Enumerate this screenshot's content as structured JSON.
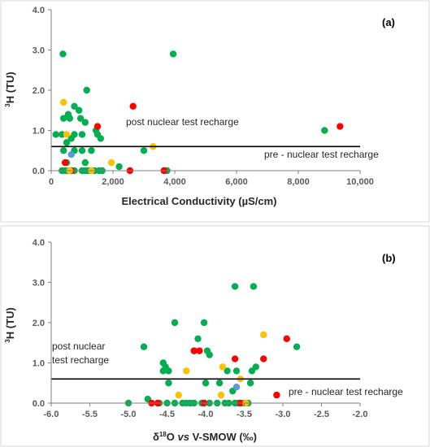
{
  "colors": {
    "green": "#00b050",
    "red": "#ff0000",
    "yellow": "#ffc000",
    "blue": "#5b9bd5",
    "axis": "#7f7f7f",
    "threshold": "#000000"
  },
  "chart_data": [
    {
      "type": "scatter",
      "panel_label": "(a)",
      "ylabel_sup": "3",
      "ylabel": "H (TU)",
      "xlabel": "Electrical Conductivity (µS/cm)",
      "xlim": [
        0,
        10000
      ],
      "ylim": [
        0,
        4
      ],
      "x_ticks": [
        "0",
        "2,000",
        "4,000",
        "6,000",
        "8,000",
        "10,000"
      ],
      "y_ticks": [
        "0.0",
        "1.0",
        "2.0",
        "3.0",
        "4.0"
      ],
      "threshold": 0.6,
      "annotations": [
        {
          "text": "post nuclear test recharge",
          "x": 3000,
          "y": 1.25
        },
        {
          "text": "pre - nuclear test recharge",
          "x": 6600,
          "y": 0.45
        }
      ],
      "series": [
        {
          "color": "green",
          "points": [
            [
              380,
              2.9
            ],
            [
              3950,
              2.9
            ],
            [
              1150,
              2.0
            ],
            [
              750,
              1.6
            ],
            [
              900,
              1.5
            ],
            [
              550,
              1.4
            ],
            [
              950,
              1.3
            ],
            [
              400,
              1.3
            ],
            [
              600,
              1.3
            ],
            [
              1100,
              1.2
            ],
            [
              150,
              0.9
            ],
            [
              1450,
              1.0
            ],
            [
              1500,
              0.9
            ],
            [
              350,
              0.9
            ],
            [
              750,
              0.9
            ],
            [
              1000,
              0.9
            ],
            [
              1600,
              0.8
            ],
            [
              650,
              0.8
            ],
            [
              500,
              0.7
            ],
            [
              3000,
              0.5
            ],
            [
              8850,
              1.0
            ],
            [
              400,
              0.5
            ],
            [
              750,
              0.5
            ],
            [
              1000,
              0.5
            ],
            [
              1300,
              0.5
            ],
            [
              2200,
              0.1
            ],
            [
              500,
              0.2
            ],
            [
              1100,
              0.2
            ],
            [
              350,
              0.0
            ],
            [
              450,
              0.0
            ],
            [
              550,
              0.0
            ],
            [
              650,
              0.0
            ],
            [
              750,
              0.0
            ],
            [
              1000,
              0.0
            ],
            [
              1100,
              0.0
            ],
            [
              1200,
              0.0
            ],
            [
              1300,
              0.0
            ],
            [
              1400,
              0.0
            ],
            [
              1550,
              0.0
            ],
            [
              1650,
              0.0
            ],
            [
              3750,
              0.0
            ]
          ]
        },
        {
          "color": "red",
          "points": [
            [
              2650,
              1.6
            ],
            [
              9350,
              1.1
            ],
            [
              1500,
              1.1
            ],
            [
              2550,
              0.0
            ],
            [
              3650,
              0.0
            ],
            [
              450,
              0.2
            ],
            [
              650,
              0.0
            ]
          ]
        },
        {
          "color": "yellow",
          "points": [
            [
              400,
              1.7
            ],
            [
              500,
              0.9
            ],
            [
              3300,
              0.6
            ],
            [
              1950,
              0.2
            ],
            [
              600,
              0.0
            ],
            [
              1300,
              0.0
            ]
          ]
        },
        {
          "color": "blue",
          "points": [
            [
              650,
              0.4
            ]
          ]
        }
      ]
    },
    {
      "type": "scatter",
      "panel_label": "(b)",
      "ylabel_sup": "3",
      "ylabel": "H (TU)",
      "xlabel_sup": "18",
      "xlabel": "O vs V-SMOW (‰)",
      "xlabel_prefix": "δ",
      "xlabel_pre": "O ",
      "xlabel_italic": "vs",
      "xlabel_post": " V-SMOW (‰)",
      "xlim": [
        -6.0,
        -2.0
      ],
      "ylim": [
        0,
        4
      ],
      "x_ticks": [
        "-6.0",
        "-5.5",
        "-5.0",
        "-4.5",
        "-4.0",
        "-3.5",
        "-3.0",
        "-2.5",
        "-2.0"
      ],
      "y_ticks": [
        "0.0",
        "1.0",
        "2.0",
        "3.0",
        "4.0"
      ],
      "threshold": 0.6,
      "annotations": [
        {
          "text": "post nuclear",
          "x": -6.0,
          "y": 1.1
        },
        {
          "text": "test recharge",
          "x": -6.0,
          "y": 0.8
        },
        {
          "text": "pre - nuclear test recharge",
          "x": -3.5,
          "y": 0.4
        }
      ],
      "series": [
        {
          "color": "green",
          "points": [
            [
              -3.62,
              2.9
            ],
            [
              -3.38,
              2.9
            ],
            [
              -4.4,
              2.0
            ],
            [
              -4.02,
              2.0
            ],
            [
              -4.1,
              1.6
            ],
            [
              -4.8,
              1.4
            ],
            [
              -2.82,
              1.4
            ],
            [
              -4.15,
              1.3
            ],
            [
              -3.98,
              1.3
            ],
            [
              -3.95,
              1.2
            ],
            [
              -4.55,
              1.0
            ],
            [
              -4.52,
              0.9
            ],
            [
              -4.48,
              0.8
            ],
            [
              -4.55,
              0.8
            ],
            [
              -3.72,
              0.8
            ],
            [
              -3.6,
              0.8
            ],
            [
              -3.4,
              0.8
            ],
            [
              -3.35,
              0.9
            ],
            [
              -4.48,
              0.5
            ],
            [
              -4.0,
              0.5
            ],
            [
              -3.82,
              0.5
            ],
            [
              -3.42,
              0.5
            ],
            [
              -3.65,
              0.3
            ],
            [
              -4.75,
              0.1
            ],
            [
              -5.0,
              0.0
            ],
            [
              -4.6,
              0.0
            ],
            [
              -4.5,
              0.0
            ],
            [
              -4.4,
              0.0
            ],
            [
              -4.3,
              0.0
            ],
            [
              -4.25,
              0.0
            ],
            [
              -4.2,
              0.0
            ],
            [
              -4.15,
              0.0
            ],
            [
              -4.05,
              0.0
            ],
            [
              -3.95,
              0.0
            ],
            [
              -3.85,
              0.0
            ],
            [
              -3.75,
              0.0
            ],
            [
              -3.7,
              0.0
            ],
            [
              -3.62,
              0.0
            ],
            [
              -3.58,
              0.0
            ],
            [
              -3.5,
              0.0
            ],
            [
              -3.45,
              0.0
            ]
          ]
        },
        {
          "color": "red",
          "points": [
            [
              -2.95,
              1.6
            ],
            [
              -4.15,
              1.3
            ],
            [
              -4.08,
              1.3
            ],
            [
              -3.62,
              1.1
            ],
            [
              -3.25,
              1.1
            ],
            [
              -3.08,
              0.2
            ],
            [
              -4.7,
              0.0
            ],
            [
              -4.62,
              0.0
            ],
            [
              -4.02,
              0.0
            ],
            [
              -3.55,
              0.0
            ]
          ]
        },
        {
          "color": "yellow",
          "points": [
            [
              -3.25,
              1.7
            ],
            [
              -3.78,
              0.9
            ],
            [
              -4.25,
              0.8
            ],
            [
              -3.55,
              0.6
            ],
            [
              -3.8,
              0.2
            ],
            [
              -4.35,
              0.2
            ],
            [
              -3.48,
              0.0
            ]
          ]
        },
        {
          "color": "blue",
          "points": [
            [
              -3.6,
              0.4
            ]
          ]
        }
      ]
    }
  ]
}
